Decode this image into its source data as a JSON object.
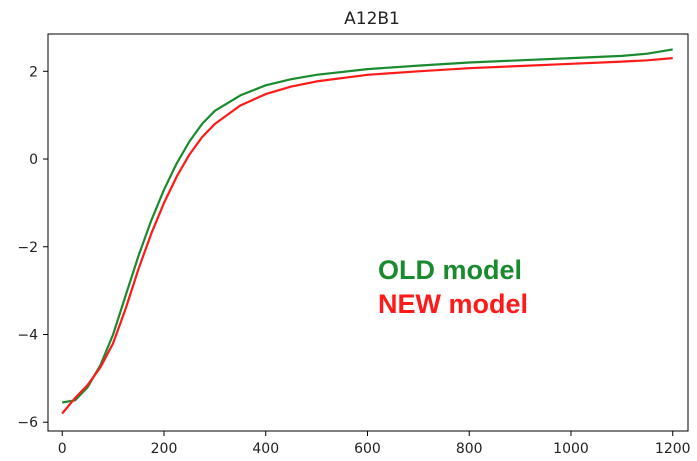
{
  "chart_data": {
    "type": "line",
    "title": "A12B1",
    "xlabel": "",
    "ylabel": "",
    "xlim": [
      -28,
      1230
    ],
    "ylim": [
      -6.2,
      2.85
    ],
    "xticks": [
      0,
      200,
      400,
      600,
      800,
      1000,
      1200
    ],
    "yticks": [
      -6,
      -4,
      -2,
      0,
      2
    ],
    "xtick_labels": [
      "0",
      "200",
      "400",
      "600",
      "800",
      "1000",
      "1200"
    ],
    "ytick_labels": [
      "−6",
      "−4",
      "−2",
      "0",
      "2"
    ],
    "grid": false,
    "legend": "none",
    "series": [
      {
        "color": "#1a8a2e",
        "x": [
          0,
          25,
          50,
          75,
          100,
          125,
          150,
          175,
          200,
          225,
          250,
          275,
          300,
          350,
          400,
          450,
          500,
          600,
          700,
          800,
          900,
          1000,
          1100,
          1150,
          1200
        ],
        "y": [
          -5.55,
          -5.5,
          -5.2,
          -4.7,
          -4.0,
          -3.1,
          -2.2,
          -1.4,
          -0.7,
          -0.1,
          0.4,
          0.8,
          1.1,
          1.45,
          1.68,
          1.82,
          1.92,
          2.05,
          2.13,
          2.2,
          2.25,
          2.3,
          2.35,
          2.4,
          2.5
        ]
      },
      {
        "color": "#ff1a1a",
        "x": [
          0,
          25,
          50,
          75,
          100,
          125,
          150,
          175,
          200,
          225,
          250,
          275,
          300,
          350,
          400,
          450,
          500,
          600,
          700,
          800,
          900,
          1000,
          1100,
          1150,
          1200
        ],
        "y": [
          -5.8,
          -5.45,
          -5.15,
          -4.75,
          -4.2,
          -3.4,
          -2.5,
          -1.7,
          -1.0,
          -0.4,
          0.1,
          0.5,
          0.8,
          1.22,
          1.48,
          1.65,
          1.77,
          1.92,
          2.0,
          2.07,
          2.12,
          2.17,
          2.22,
          2.25,
          2.3
        ]
      }
    ],
    "annotations": [
      {
        "text": "OLD model",
        "color": "#1a8a2e"
      },
      {
        "text": "NEW model",
        "color": "#ff1a1a"
      }
    ]
  }
}
